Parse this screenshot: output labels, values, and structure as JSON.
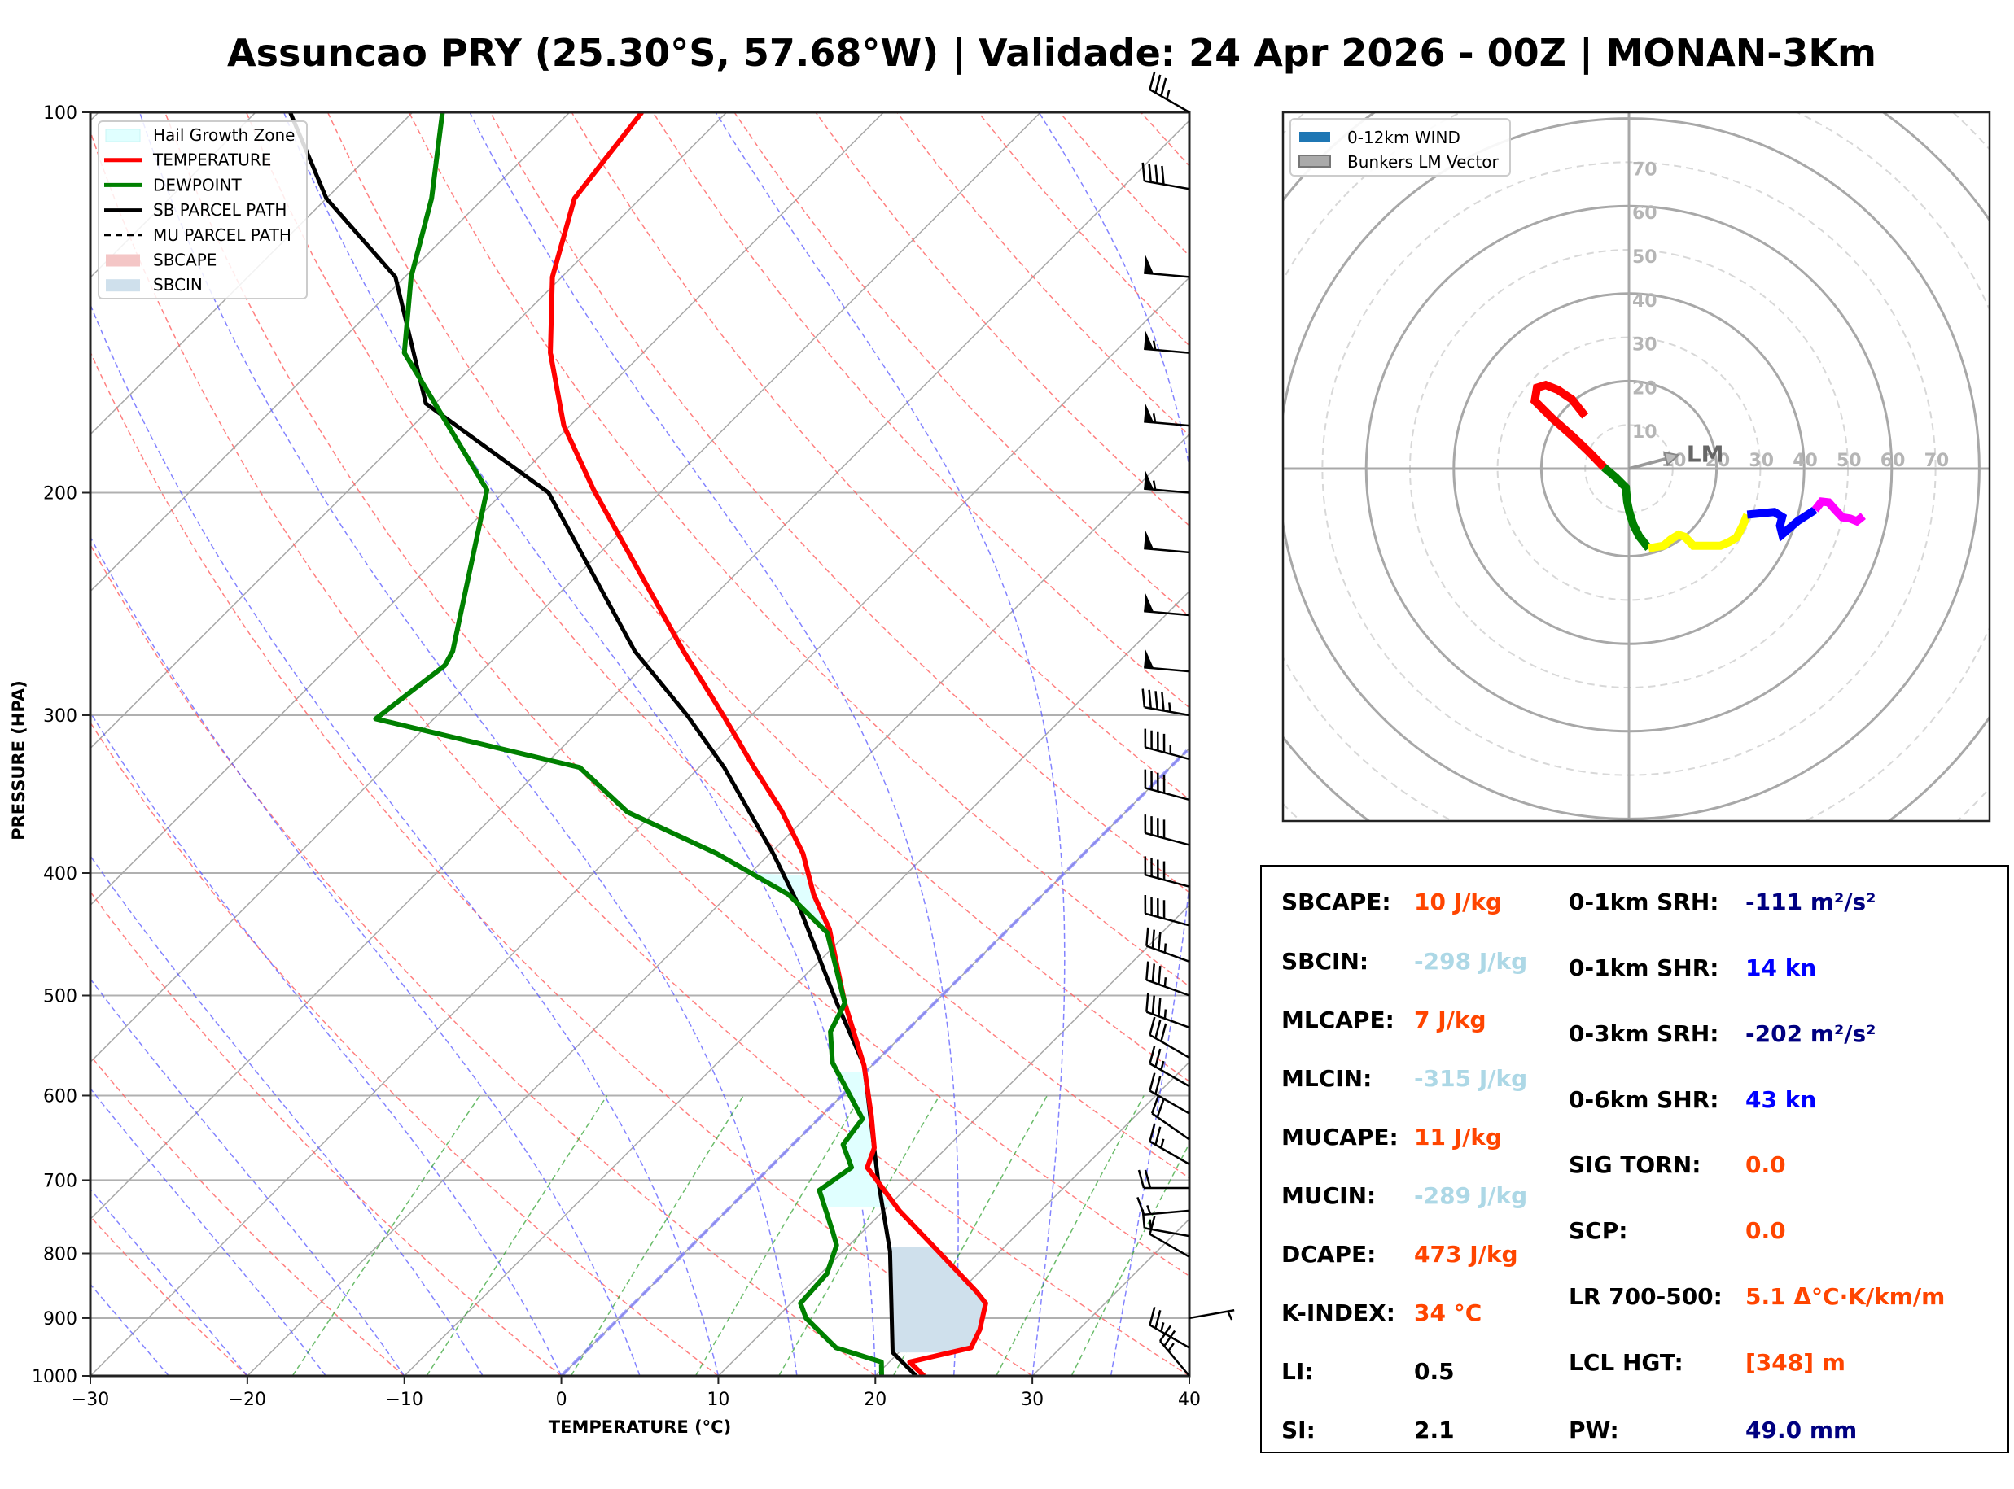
{
  "title": "Assuncao PRY (25.30°S, 57.68°W) | Validade: 24 Apr 2026 - 00Z | MONAN-3Km",
  "colors": {
    "temperature": "#ff0000",
    "dewpoint": "#008000",
    "parcel": "#000000",
    "hail_zone": "#e0ffff",
    "sbcape": "#f4c6c6",
    "sbcin": "#cfe0ec",
    "orange_value": "#ff4500",
    "lightblue_value": "#add8e6",
    "navy_value": "#000080",
    "blue_value": "#0000ff"
  },
  "chart_data": [
    {
      "type": "line",
      "name": "skew-t",
      "xlabel": "TEMPERATURE (°C)",
      "ylabel": "PRESSURE (HPA)",
      "xlim": [
        -30,
        40
      ],
      "ylim": [
        1000,
        100
      ],
      "xticks": [
        -30,
        -20,
        -10,
        0,
        10,
        20,
        30,
        40
      ],
      "xtick_labels": [
        "−30",
        "−20",
        "−10",
        "0",
        "10",
        "20",
        "30",
        "40"
      ],
      "yticks": [
        100,
        200,
        300,
        400,
        500,
        600,
        700,
        800,
        900,
        1000
      ],
      "ytick_labels": [
        "100",
        "200",
        "300",
        "400",
        "500",
        "600",
        "700",
        "800",
        "900",
        "1000"
      ],
      "legend": {
        "placement": "top-left",
        "entries": [
          "Hail Growth Zone",
          "TEMPERATURE",
          "DEWPOINT",
          "SB PARCEL PATH",
          "MU PARCEL PATH",
          "SBCAPE",
          "SBCIN"
        ]
      },
      "series": [
        {
          "name": "TEMPERATURE",
          "pressure": [
            1000,
            975,
            950,
            919,
            876,
            858,
            788,
            740,
            684,
            660,
            623,
            568,
            507,
            443,
            416,
            386,
            357,
            330,
            300,
            267,
            199,
            177,
            155,
            135,
            117,
            100
          ],
          "temp": [
            23.1,
            21.3,
            24.3,
            23.7,
            22.4,
            21.1,
            15.3,
            11.0,
            6.2,
            5.4,
            3.2,
            -0.5,
            -5.7,
            -11.4,
            -14.6,
            -17.9,
            -22.0,
            -26.5,
            -31.8,
            -38.4,
            -54.4,
            -60.4,
            -65.9,
            -70.6,
            -74.2,
            -75.4
          ]
        },
        {
          "name": "DEWPOINT",
          "pressure": [
            1000,
            975,
            950,
            900,
            876,
            830,
            788,
            769,
            713,
            684,
            656,
            626,
            565,
            534,
            507,
            446,
            416,
            386,
            358,
            330,
            302,
            274,
            267,
            199,
            155,
            135,
            117,
            100
          ],
          "temp": [
            20.4,
            19.5,
            15.7,
            11.9,
            10.6,
            10.4,
            9.2,
            8.1,
            4.6,
            5.2,
            3.2,
            2.8,
            -2.7,
            -4.8,
            -5.7,
            -11.3,
            -16.2,
            -23.4,
            -31.7,
            -37.6,
            -53.7,
            -52.7,
            -53.1,
            -61.2,
            -75.2,
            -79.6,
            -83.3,
            -88.1
          ]
        },
        {
          "name": "SB PARCEL PATH",
          "pressure": [
            1000,
            958,
            797,
            700,
            568,
            507,
            424,
            386,
            330,
            300,
            267,
            200,
            170,
            135,
            117,
            100
          ],
          "temp": [
            22.6,
            19.6,
            13.0,
            7.7,
            -0.5,
            -6.2,
            -14.9,
            -19.8,
            -28.4,
            -34.1,
            -41.5,
            -57.1,
            -70.6,
            -80.6,
            -90.0,
            -97.8
          ]
        },
        {
          "name": "MU PARCEL PATH",
          "pressure": [
            1000,
            958,
            797,
            700,
            568,
            507,
            424,
            386,
            330,
            300,
            267,
            200,
            170,
            135,
            117,
            100
          ],
          "temp": [
            22.6,
            19.6,
            13.0,
            7.7,
            -0.5,
            -6.2,
            -14.9,
            -19.8,
            -28.4,
            -34.1,
            -41.5,
            -57.1,
            -70.6,
            -80.6,
            -90.0,
            -97.8
          ]
        }
      ],
      "wind_barbs": {
        "pressure": [
          100,
          115,
          135,
          155,
          177,
          200,
          223,
          250,
          277,
          300,
          325,
          350,
          380,
          410,
          440,
          470,
          500,
          530,
          560,
          590,
          620,
          650,
          680,
          710,
          740,
          775,
          805,
          900,
          950,
          1000
        ],
        "speed_kt": [
          35,
          40,
          50,
          55,
          55,
          55,
          50,
          50,
          50,
          45,
          45,
          40,
          40,
          40,
          40,
          35,
          35,
          35,
          30,
          25,
          20,
          20,
          25,
          20,
          15,
          15,
          10,
          5,
          25,
          25
        ],
        "direction_deg": [
          300,
          280,
          275,
          275,
          275,
          275,
          275,
          275,
          275,
          280,
          285,
          285,
          285,
          285,
          285,
          290,
          290,
          290,
          300,
          300,
          300,
          305,
          300,
          270,
          265,
          280,
          300,
          80,
          300,
          320
        ]
      }
    },
    {
      "type": "line",
      "name": "hodograph",
      "legend": {
        "placement": "top-left",
        "entries": [
          "0-12km WIND",
          "Bunkers LM Vector"
        ]
      },
      "ring_labels": [
        10,
        20,
        30,
        40,
        50,
        60,
        70
      ],
      "max_kt": 80,
      "lm_label": "LM",
      "lm_vector_kt": [
        11.3,
        3.1
      ],
      "segments": [
        {
          "color": "#ff0000",
          "u": [
            -5.7,
            -9.0,
            -13.0,
            -17.5,
            -21.5,
            -21.0,
            -19.0,
            -16.2,
            -13.0,
            -10.0
          ],
          "v": [
            0.3,
            3.7,
            7.5,
            11.5,
            15.5,
            18.5,
            19.1,
            18.0,
            15.8,
            12.0
          ]
        },
        {
          "color": "#008000",
          "u": [
            -5.7,
            -3.0,
            -0.7,
            -0.4,
            0.1,
            1.0,
            2.3,
            4.5
          ],
          "v": [
            0.3,
            -2.0,
            -4.3,
            -7.5,
            -9.9,
            -12.8,
            -15.4,
            -18.2
          ]
        },
        {
          "color": "#ffff00",
          "u": [
            4.5,
            7.9,
            9.5,
            11.3,
            12.8,
            14.7,
            17.5,
            20.9,
            22.8,
            24.6,
            26.0,
            27.0
          ],
          "v": [
            -18.2,
            -17.6,
            -16.2,
            -15.1,
            -15.6,
            -17.6,
            -17.6,
            -17.6,
            -16.8,
            -15.7,
            -13.0,
            -10.5
          ]
        },
        {
          "color": "#0000ff",
          "u": [
            27.0,
            30.0,
            33.2,
            35.0,
            34.5,
            35.0,
            38.5,
            42.5
          ],
          "v": [
            -10.5,
            -10.2,
            -9.9,
            -11.0,
            -13.0,
            -15.0,
            -12.0,
            -9.4
          ]
        },
        {
          "color": "#ff00ff",
          "u": [
            42.5,
            44.0,
            45.6,
            47.2,
            48.7,
            50.5,
            52.0,
            53.5
          ],
          "v": [
            -9.4,
            -7.5,
            -7.7,
            -9.5,
            -11.1,
            -11.4,
            -12.0,
            -10.8
          ]
        }
      ]
    }
  ],
  "stats": {
    "left": [
      {
        "label": "SBCAPE:",
        "value": "10 J/kg",
        "color": "orange"
      },
      {
        "label": "SBCIN:",
        "value": "-298 J/kg",
        "color": "lightblue"
      },
      {
        "label": "MLCAPE:",
        "value": "7 J/kg",
        "color": "orange"
      },
      {
        "label": "MLCIN:",
        "value": "-315 J/kg",
        "color": "lightblue"
      },
      {
        "label": "MUCAPE:",
        "value": "11 J/kg",
        "color": "orange"
      },
      {
        "label": "MUCIN:",
        "value": "-289 J/kg",
        "color": "lightblue"
      },
      {
        "label": "DCAPE:",
        "value": "473 J/kg",
        "color": "orange"
      },
      {
        "label": "K-INDEX:",
        "value": "34 °C",
        "color": "orange"
      },
      {
        "label": "LI:",
        "value": "0.5",
        "color": "black"
      },
      {
        "label": "SI:",
        "value": "2.1",
        "color": "black"
      }
    ],
    "right": [
      {
        "label": "0-1km SRH:",
        "value": "-111 m²/s²",
        "color": "navy"
      },
      {
        "label": "0-1km SHR:",
        "value": "14 kn",
        "color": "blue"
      },
      {
        "label": "0-3km SRH:",
        "value": "-202 m²/s²",
        "color": "navy"
      },
      {
        "label": "0-6km SHR:",
        "value": "43 kn",
        "color": "blue"
      },
      {
        "label": "SIG TORN:",
        "value": "0.0",
        "color": "orange"
      },
      {
        "label": "SCP:",
        "value": "0.0",
        "color": "orange"
      },
      {
        "label": "LR 700-500:",
        "value": "5.1 Δ°C·K/km/m",
        "color": "orange"
      },
      {
        "label": "LCL HGT:",
        "value": "[348] m",
        "color": "orange"
      },
      {
        "label": "PW:",
        "value": "49.0 mm",
        "color": "navy"
      }
    ]
  }
}
